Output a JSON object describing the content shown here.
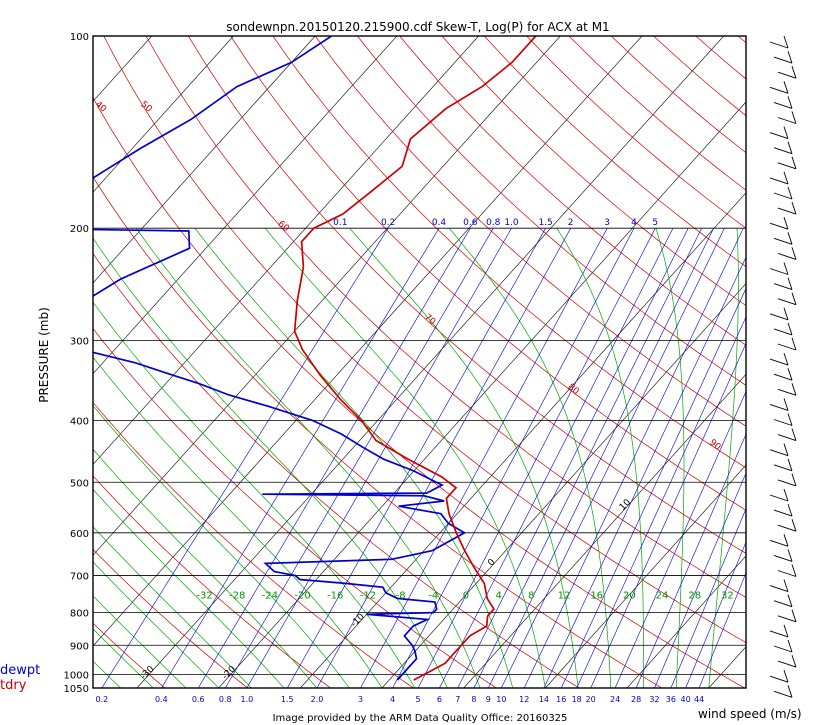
{
  "chart_data": {
    "type": "line",
    "title": "sondewnpn.20150120.215900.cdf    Skew-T, Log(P) for ACX at M1",
    "ylabel": "PRESSURE  (mb)",
    "wind_label": "wind speed (m/s)",
    "footer": "Image provided by the ARM Data Quality Office: 20160325",
    "pressure_ticks": [
      100,
      200,
      300,
      400,
      500,
      600,
      700,
      800,
      900,
      1000,
      1050
    ],
    "ylim": [
      1050,
      100
    ],
    "temperature_ticks": [
      -32,
      -28,
      -24,
      -20,
      -16,
      -12,
      -8,
      -4,
      0,
      4,
      8,
      12,
      16,
      20,
      24,
      28,
      32,
      36
    ],
    "mixing_ratio_top_labels": [
      "0.1",
      "0.2",
      "0.4",
      "0.6",
      "0.8",
      "1.0",
      "1.5",
      "2",
      "3",
      "4",
      "5"
    ],
    "bottom_labels": [
      "0.2",
      "0.4",
      "0.6",
      "0.8",
      "1.0",
      "1.5",
      "2.0",
      "3",
      "4",
      "5",
      "6",
      "7",
      "8",
      "9",
      "10",
      "12",
      "14",
      "16",
      "18",
      "20",
      "24",
      "28",
      "32",
      "36",
      "40",
      "44"
    ],
    "isotherm_labels": [
      "-110",
      "-100",
      "-90",
      "-80",
      "-70",
      "-60",
      "-50",
      "-40",
      "-30",
      "-20",
      "-10",
      "0",
      "10",
      "20",
      "30",
      "40"
    ],
    "theta_labels": [
      "160",
      "150",
      "140",
      "130",
      "120",
      "110",
      "100",
      "90",
      "80",
      "70",
      "60",
      "50",
      "40",
      "30",
      "20",
      "10",
      "0",
      "-10",
      "-20",
      "-30"
    ],
    "series": [
      {
        "name": "dewpt",
        "color": "#0000cc",
        "points": [
          [
            100,
            -78
          ],
          [
            110,
            -80
          ],
          [
            120,
            -84
          ],
          [
            135,
            -86
          ],
          [
            150,
            -89
          ],
          [
            170,
            -92
          ],
          [
            185,
            -93
          ],
          [
            195,
            -94
          ],
          [
            200,
            -97
          ],
          [
            202,
            -74
          ],
          [
            215,
            -72
          ],
          [
            240,
            -77
          ],
          [
            260,
            -79
          ],
          [
            275,
            -82
          ],
          [
            290,
            -85
          ],
          [
            300,
            -83
          ],
          [
            310,
            -74
          ],
          [
            325,
            -66
          ],
          [
            340,
            -60
          ],
          [
            350,
            -56
          ],
          [
            365,
            -51
          ],
          [
            380,
            -45
          ],
          [
            400,
            -38
          ],
          [
            420,
            -33
          ],
          [
            440,
            -29
          ],
          [
            460,
            -25
          ],
          [
            480,
            -20
          ],
          [
            495,
            -17
          ],
          [
            505,
            -15
          ],
          [
            520,
            -16
          ],
          [
            522,
            -36
          ],
          [
            525,
            -16
          ],
          [
            535,
            -13
          ],
          [
            545,
            -18
          ],
          [
            560,
            -12
          ],
          [
            580,
            -10
          ],
          [
            600,
            -7
          ],
          [
            620,
            -8
          ],
          [
            640,
            -9
          ],
          [
            660,
            -13
          ],
          [
            670,
            -28
          ],
          [
            690,
            -26
          ],
          [
            700,
            -23
          ],
          [
            710,
            -22
          ],
          [
            720,
            -16
          ],
          [
            730,
            -11
          ],
          [
            745,
            -10
          ],
          [
            760,
            -8
          ],
          [
            770,
            -3
          ],
          [
            790,
            -2
          ],
          [
            800,
            -2
          ],
          [
            805,
            -10
          ],
          [
            820,
            -2
          ],
          [
            840,
            -3
          ],
          [
            870,
            -3
          ],
          [
            900,
            -1
          ],
          [
            920,
            0
          ],
          [
            945,
            1
          ],
          [
            970,
            1
          ],
          [
            1000,
            1
          ],
          [
            1020,
            1
          ]
        ]
      },
      {
        "name": "tdry",
        "color": "#cc0000",
        "points": [
          [
            100,
            -53
          ],
          [
            110,
            -53
          ],
          [
            120,
            -54
          ],
          [
            130,
            -56
          ],
          [
            145,
            -57
          ],
          [
            160,
            -55
          ],
          [
            175,
            -56
          ],
          [
            190,
            -57
          ],
          [
            200,
            -59
          ],
          [
            210,
            -59
          ],
          [
            230,
            -56
          ],
          [
            260,
            -53
          ],
          [
            290,
            -50
          ],
          [
            310,
            -47
          ],
          [
            340,
            -42
          ],
          [
            370,
            -37
          ],
          [
            400,
            -32
          ],
          [
            430,
            -28
          ],
          [
            460,
            -22
          ],
          [
            490,
            -16
          ],
          [
            510,
            -13
          ],
          [
            530,
            -13
          ],
          [
            560,
            -11
          ],
          [
            600,
            -8
          ],
          [
            640,
            -5
          ],
          [
            680,
            -2
          ],
          [
            720,
            1
          ],
          [
            760,
            3
          ],
          [
            790,
            5
          ],
          [
            810,
            5
          ],
          [
            840,
            6
          ],
          [
            870,
            5
          ],
          [
            900,
            5
          ],
          [
            930,
            5
          ],
          [
            960,
            5
          ],
          [
            990,
            4
          ],
          [
            1020,
            3
          ]
        ]
      }
    ],
    "legend": [
      {
        "label": "dewpt",
        "color": "#0000cc"
      },
      {
        "label": "tdry",
        "color": "#cc0000"
      }
    ]
  }
}
